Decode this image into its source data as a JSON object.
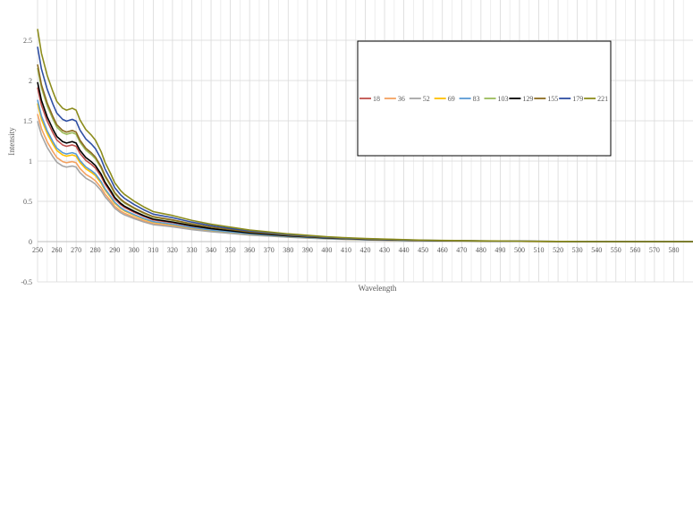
{
  "chart_data": {
    "type": "line",
    "title": "",
    "xlabel": "Wavelength",
    "ylabel": "Intensity",
    "xlim": [
      250,
      590
    ],
    "ylim": [
      -0.5,
      3
    ],
    "x_ticks": [
      250,
      260,
      270,
      280,
      290,
      300,
      310,
      320,
      330,
      340,
      350,
      360,
      370,
      380,
      390,
      400,
      410,
      420,
      430,
      440,
      450,
      460,
      470,
      480,
      490,
      500,
      510,
      520,
      530,
      540,
      550,
      560,
      570,
      580
    ],
    "y_ticks": [
      -0.5,
      0,
      0.5,
      1,
      1.5,
      2,
      2.5
    ],
    "y_tick_labels": [
      "-0.5",
      "0",
      "0.5",
      "1",
      "1.5",
      "2",
      "2.5"
    ],
    "grid": true,
    "legend_position": "top-right",
    "x": [
      250,
      252,
      255,
      258,
      260,
      263,
      265,
      268,
      270,
      272,
      275,
      278,
      280,
      283,
      285,
      288,
      290,
      293,
      295,
      300,
      305,
      310,
      315,
      320,
      330,
      340,
      350,
      360,
      370,
      380,
      390,
      400,
      410,
      420,
      430,
      440,
      450,
      460,
      470,
      480,
      490,
      500,
      510,
      520,
      530,
      540,
      550,
      560,
      570,
      580,
      590
    ],
    "base_profile": [
      2.2,
      1.95,
      1.72,
      1.55,
      1.45,
      1.38,
      1.36,
      1.38,
      1.36,
      1.26,
      1.16,
      1.1,
      1.05,
      0.93,
      0.82,
      0.7,
      0.61,
      0.53,
      0.49,
      0.42,
      0.36,
      0.31,
      0.29,
      0.27,
      0.22,
      0.18,
      0.15,
      0.12,
      0.1,
      0.08,
      0.065,
      0.05,
      0.04,
      0.032,
      0.026,
      0.02,
      0.015,
      0.012,
      0.01,
      0.008,
      0.006,
      0.004,
      0.003,
      0.002,
      0.001,
      0.0,
      0.0,
      0.0,
      0.0,
      0.0,
      0.0
    ],
    "series": [
      {
        "name": "18",
        "color": "#c0504d",
        "scale": 0.87
      },
      {
        "name": "36",
        "color": "#f4a261",
        "scale": 0.72
      },
      {
        "name": "52",
        "color": "#a5a5a5",
        "scale": 0.68
      },
      {
        "name": "69",
        "color": "#ffc000",
        "scale": 0.78
      },
      {
        "name": "83",
        "color": "#5b9bd5",
        "scale": 0.8
      },
      {
        "name": "103",
        "color": "#9bbb59",
        "scale": 0.98
      },
      {
        "name": "129",
        "color": "#000000",
        "scale": 0.9
      },
      {
        "name": "155",
        "color": "#8b6b1f",
        "scale": 1.0
      },
      {
        "name": "179",
        "color": "#2f4fa3",
        "scale": 1.1
      },
      {
        "name": "221",
        "color": "#8c8c1c",
        "scale": 1.2
      }
    ]
  }
}
